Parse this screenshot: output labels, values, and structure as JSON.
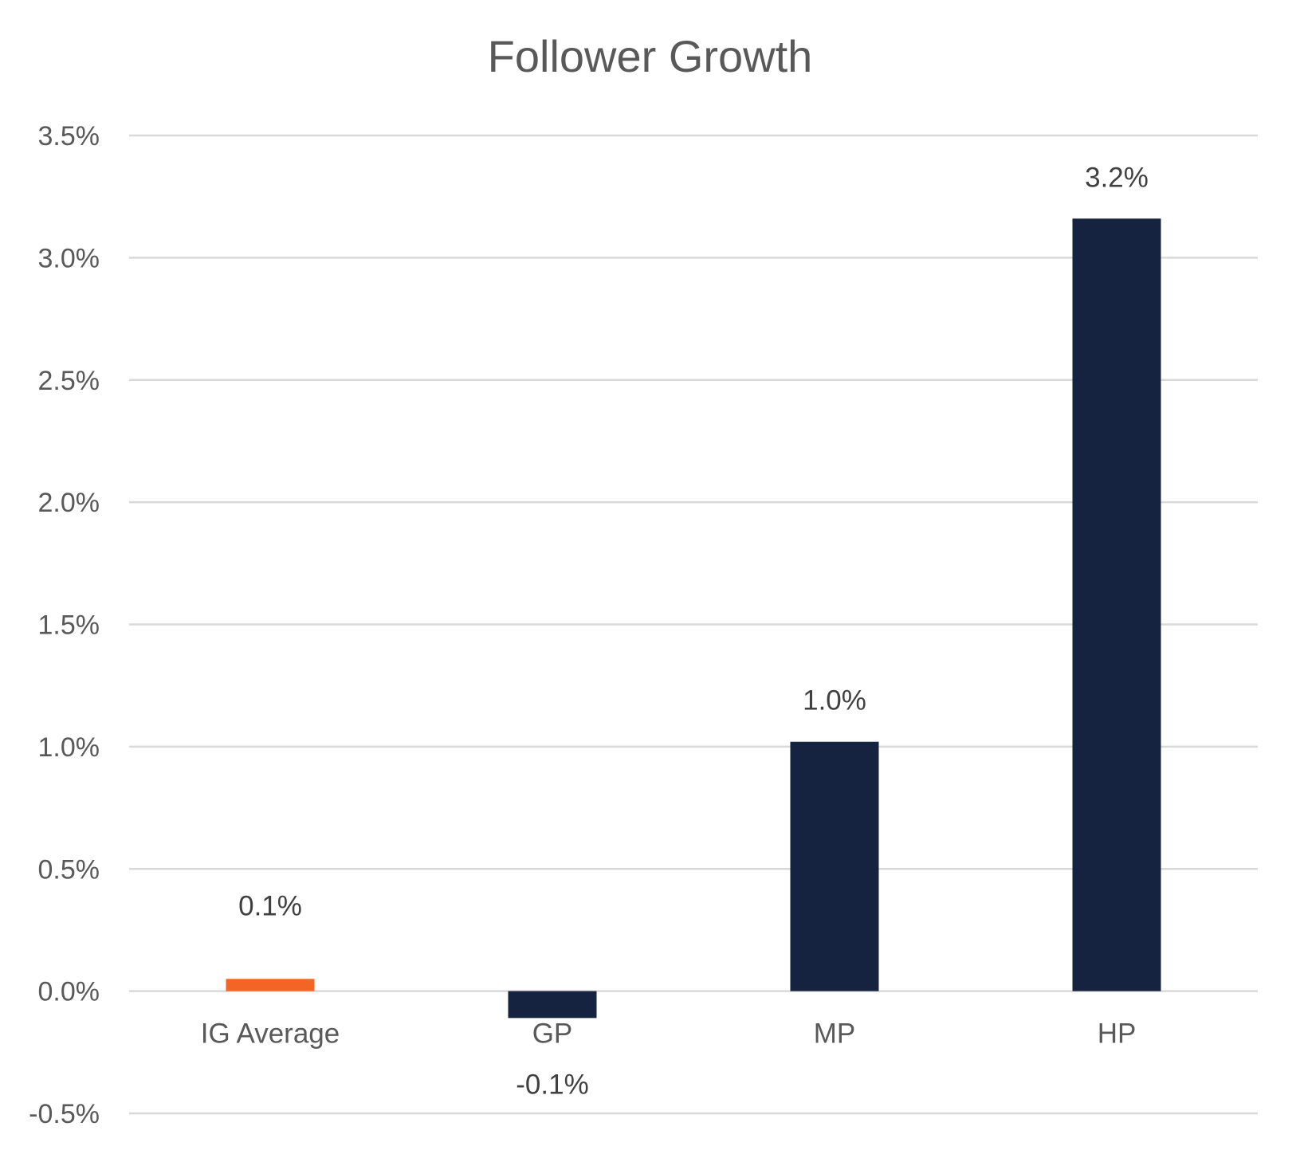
{
  "chart_data": {
    "type": "bar",
    "title": "Follower Growth",
    "xlabel": "",
    "ylabel": "",
    "categories": [
      "IG Average",
      "GP",
      "MP",
      "HP"
    ],
    "values": [
      0.05,
      -0.11,
      1.02,
      3.16
    ],
    "data_labels": [
      "0.1%",
      "-0.1%",
      "1.0%",
      "3.2%"
    ],
    "bar_colors": [
      "#F26522",
      "#162340",
      "#162340",
      "#162340"
    ],
    "ylim": [
      -0.5,
      3.5
    ],
    "yticks": [
      -0.5,
      0.0,
      0.5,
      1.0,
      1.5,
      2.0,
      2.5,
      3.0,
      3.5
    ],
    "ytick_labels": [
      "-0.5%",
      "0.0%",
      "0.5%",
      "1.0%",
      "1.5%",
      "2.0%",
      "2.5%",
      "3.0%",
      "3.5%"
    ],
    "grid": true,
    "legend": "none",
    "colors": {
      "grid": "#D9D9D9",
      "text": "#595959"
    }
  }
}
